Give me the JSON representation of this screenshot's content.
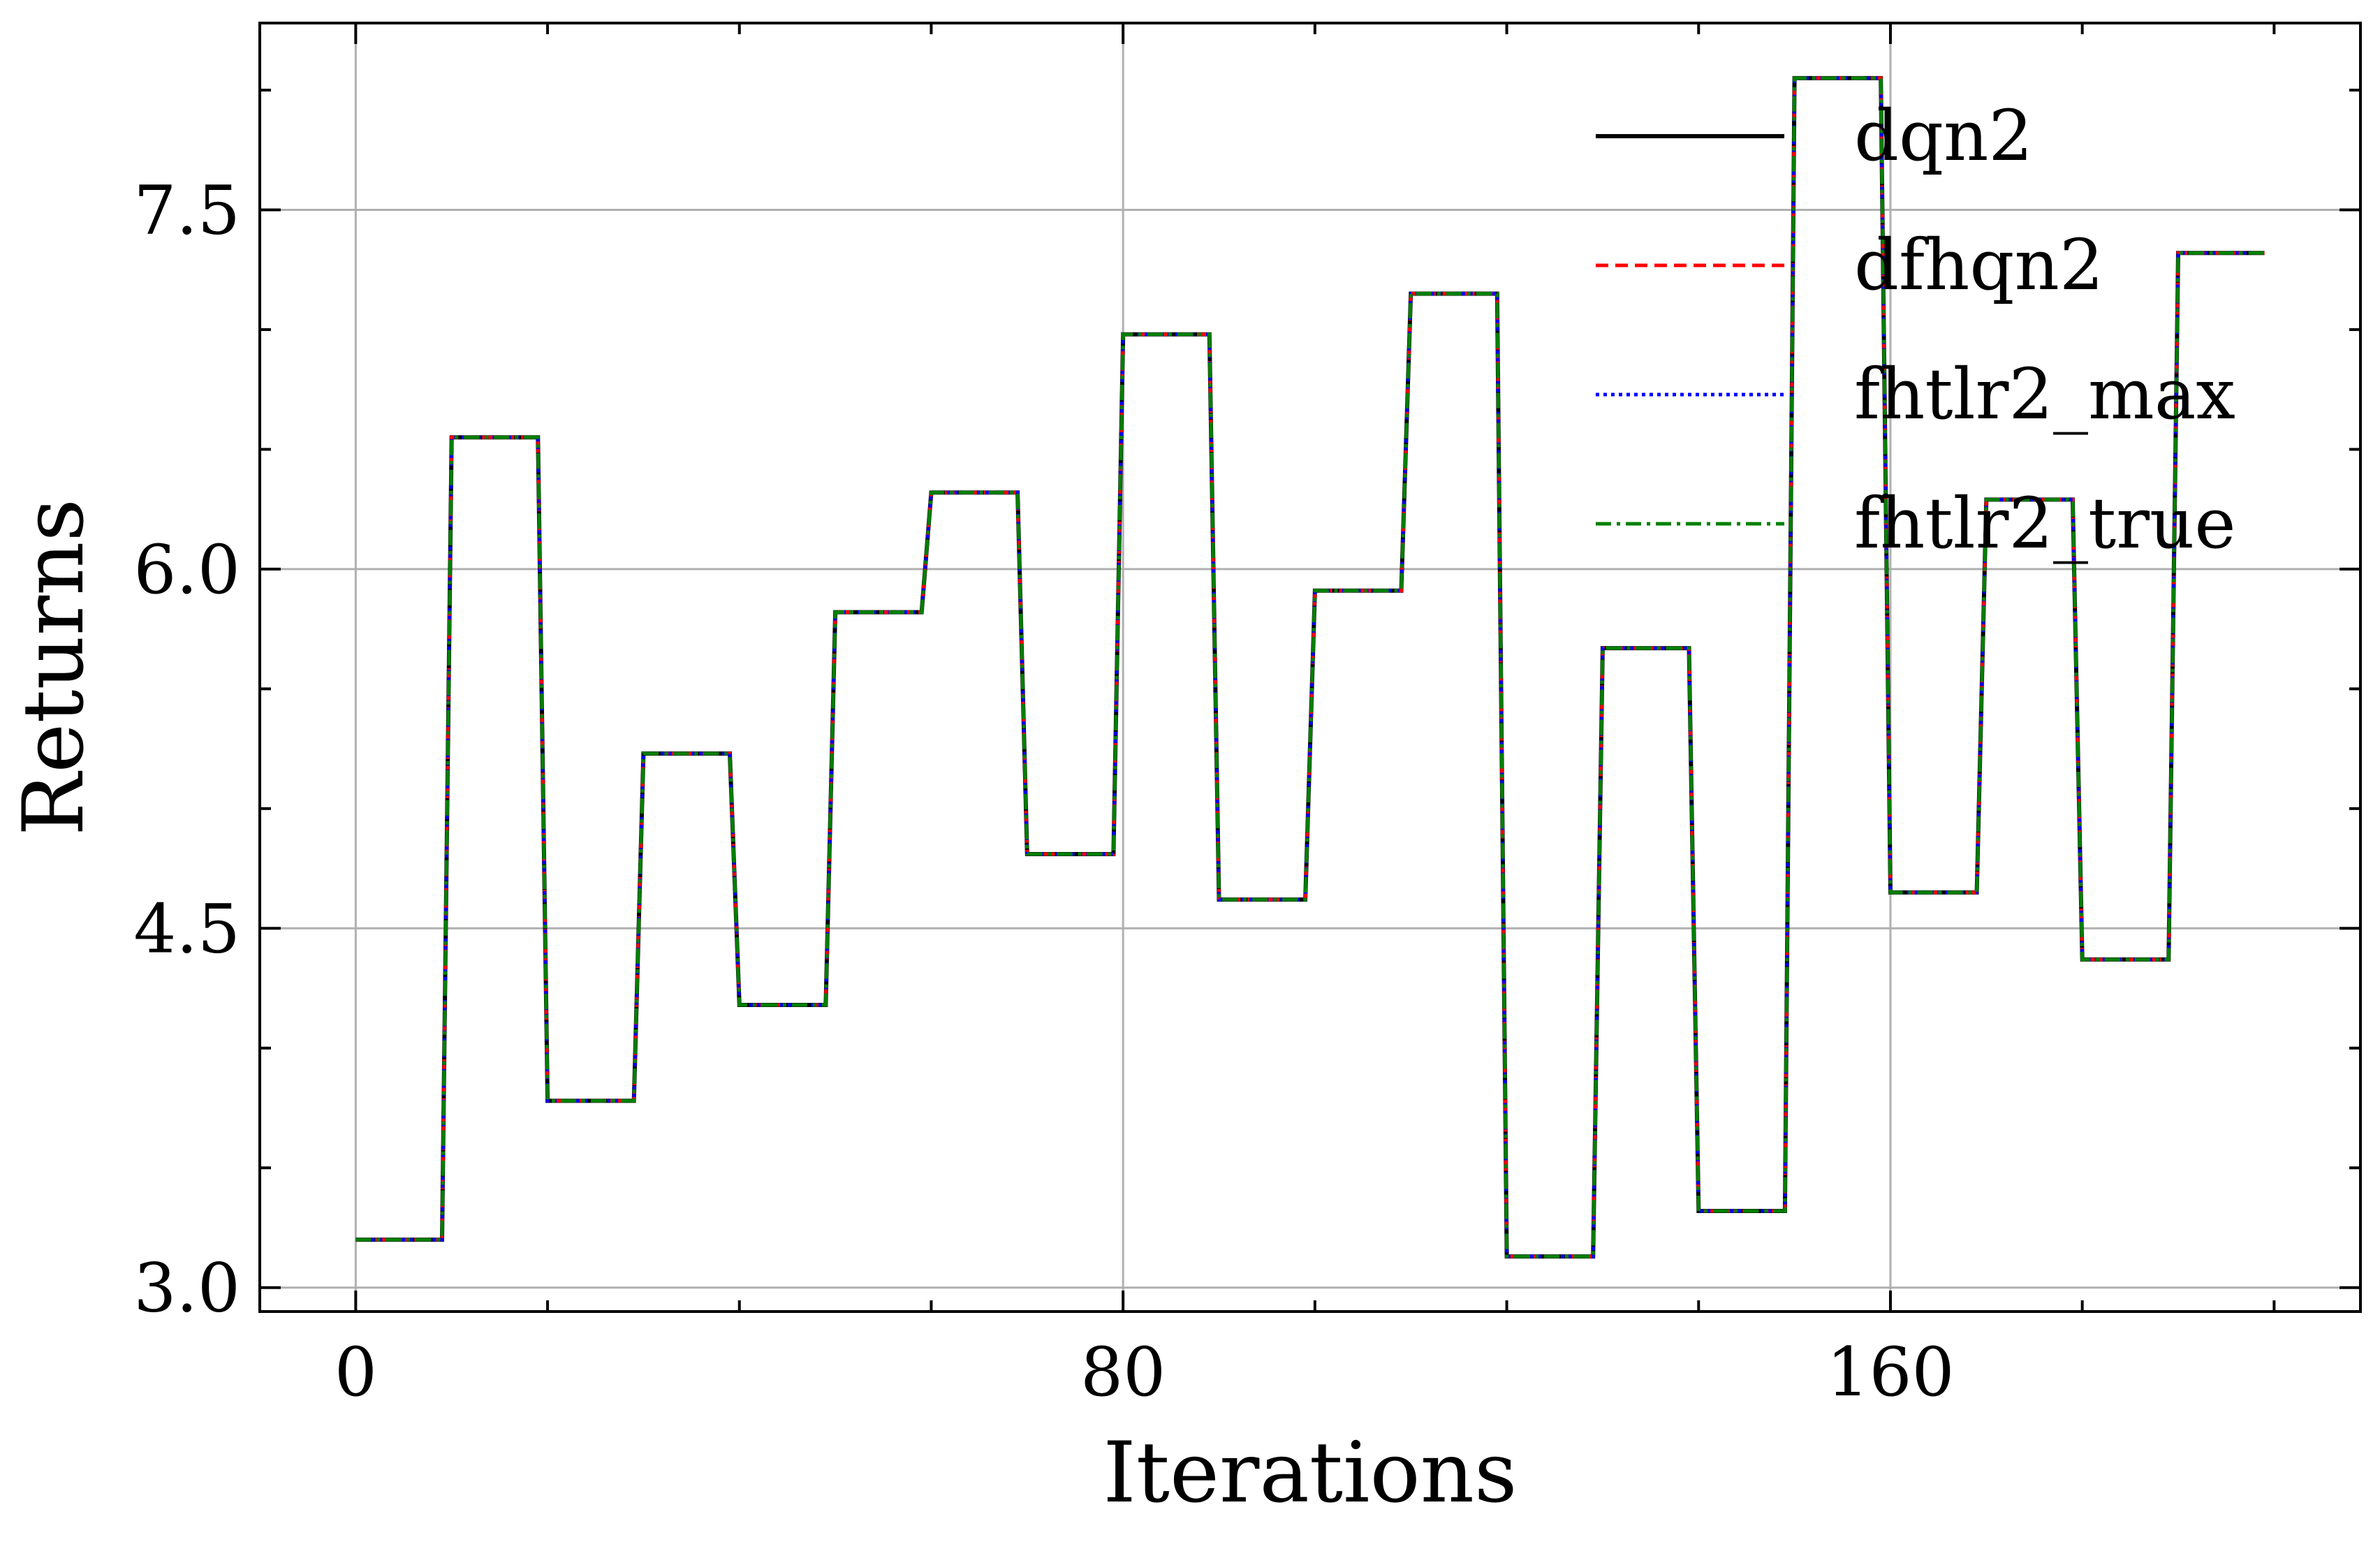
{
  "chart_data": {
    "type": "line",
    "xlabel": "Iterations",
    "ylabel": "Returns",
    "xlim": [
      -10,
      209
    ],
    "ylim": [
      2.9,
      8.28
    ],
    "xticks": [
      0,
      80,
      160
    ],
    "xtick_labels": [
      "0",
      "80",
      "160"
    ],
    "yticks": [
      3.0,
      4.5,
      6.0,
      7.5
    ],
    "ytick_labels": [
      "3.0",
      "4.5",
      "6.0",
      "7.5"
    ],
    "grid": true,
    "legend_position": "top-right",
    "x": [
      0,
      9,
      10,
      19,
      20,
      29,
      30,
      39,
      40,
      49,
      50,
      59,
      60,
      69,
      70,
      79,
      80,
      89,
      90,
      99,
      100,
      109,
      110,
      119,
      120,
      129,
      130,
      139,
      140,
      149,
      150,
      159,
      160,
      169,
      170,
      179,
      180,
      189,
      190,
      199
    ],
    "series": [
      {
        "name": "dqn2",
        "color": "#000000",
        "style": "solid",
        "values": [
          3.2,
          3.2,
          6.55,
          6.55,
          3.78,
          3.78,
          5.23,
          5.23,
          4.18,
          4.18,
          5.82,
          5.82,
          6.32,
          6.32,
          4.81,
          4.81,
          6.98,
          6.98,
          4.62,
          4.62,
          5.91,
          5.91,
          7.15,
          7.15,
          3.13,
          3.13,
          5.67,
          5.67,
          3.32,
          3.32,
          8.05,
          8.05,
          4.65,
          4.65,
          6.29,
          6.29,
          4.37,
          4.37,
          7.32,
          7.32
        ]
      },
      {
        "name": "dfhqn2",
        "color": "#ff0000",
        "style": "dashed",
        "values": [
          3.2,
          3.2,
          6.55,
          6.55,
          3.78,
          3.78,
          5.23,
          5.23,
          4.18,
          4.18,
          5.82,
          5.82,
          6.32,
          6.32,
          4.81,
          4.81,
          6.98,
          6.98,
          4.62,
          4.62,
          5.91,
          5.91,
          7.15,
          7.15,
          3.13,
          3.13,
          5.67,
          5.67,
          3.32,
          3.32,
          8.05,
          8.05,
          4.65,
          4.65,
          6.29,
          6.29,
          4.37,
          4.37,
          7.32,
          7.32
        ]
      },
      {
        "name": "fhtlr2_max",
        "color": "#0000ff",
        "style": "dotted",
        "values": [
          3.2,
          3.2,
          6.55,
          6.55,
          3.78,
          3.78,
          5.23,
          5.23,
          4.18,
          4.18,
          5.82,
          5.82,
          6.32,
          6.32,
          4.81,
          4.81,
          6.98,
          6.98,
          4.62,
          4.62,
          5.91,
          5.91,
          7.15,
          7.15,
          3.13,
          3.13,
          5.67,
          5.67,
          3.32,
          3.32,
          8.05,
          8.05,
          4.65,
          4.65,
          6.29,
          6.29,
          4.37,
          4.37,
          7.32,
          7.32
        ]
      },
      {
        "name": "fhtlr2_true",
        "color": "#008000",
        "style": "dashdot",
        "values": [
          3.2,
          3.2,
          6.55,
          6.55,
          3.78,
          3.78,
          5.23,
          5.23,
          4.18,
          4.18,
          5.82,
          5.82,
          6.32,
          6.32,
          4.81,
          4.81,
          6.98,
          6.98,
          4.62,
          4.62,
          5.91,
          5.91,
          7.15,
          7.15,
          3.13,
          3.13,
          5.67,
          5.67,
          3.32,
          3.32,
          8.05,
          8.05,
          4.65,
          4.65,
          6.29,
          6.29,
          4.37,
          4.37,
          7.32,
          7.32
        ]
      }
    ]
  }
}
